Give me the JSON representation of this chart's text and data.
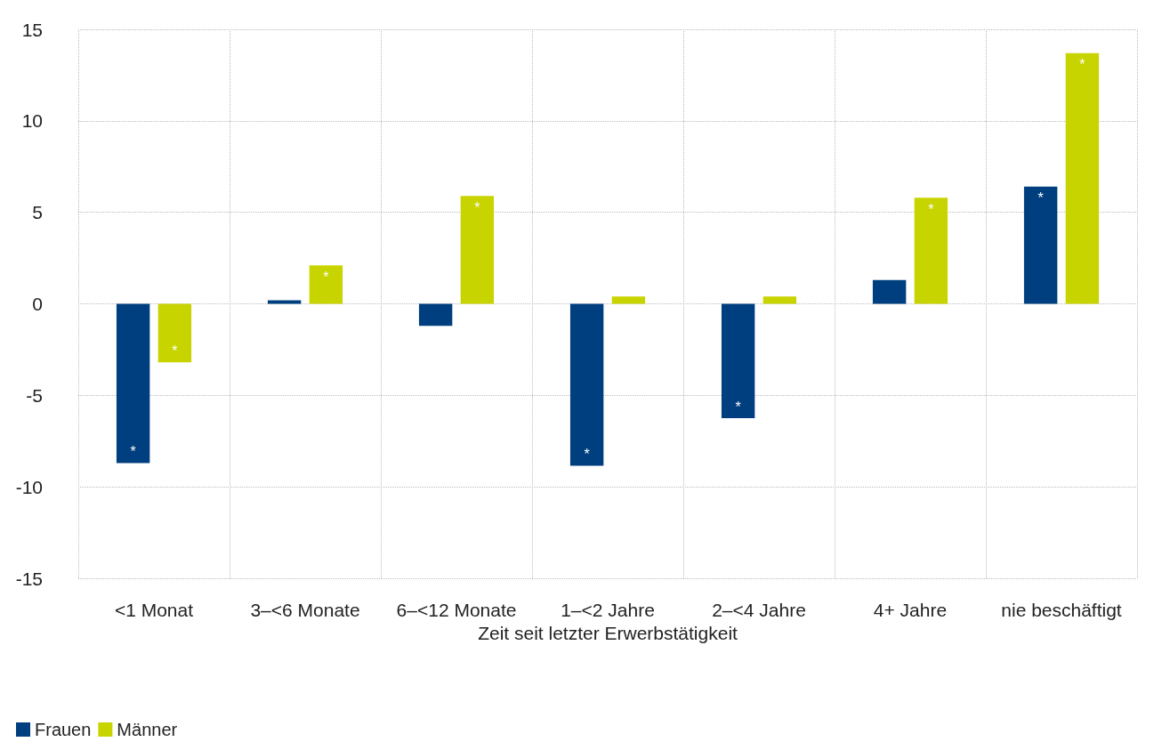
{
  "chart_data": {
    "type": "bar",
    "xlabel": "Zeit seit letzter Erwerbstätigkeit",
    "categories": [
      "<1 Monat",
      "3–<6 Monate",
      "6–<12 Monate",
      "1–<2 Jahre",
      "2–<4 Jahre",
      "4+ Jahre",
      "nie beschäftigt"
    ],
    "series": [
      {
        "name": "Frauen",
        "color": "#003f7f",
        "values": [
          -8.7,
          0.2,
          -1.2,
          -8.85,
          -6.25,
          1.3,
          6.4
        ],
        "value_labels": [
          "*",
          null,
          null,
          "*",
          "*",
          null,
          "*"
        ]
      },
      {
        "name": "Männer",
        "color": "#c8d400",
        "values": [
          -3.2,
          2.1,
          5.9,
          0.4,
          0.4,
          5.8,
          13.7
        ],
        "value_labels": [
          "*",
          "*",
          "*",
          null,
          null,
          "*",
          "*"
        ]
      }
    ],
    "ylim": [
      -15,
      15
    ],
    "yticks": [
      -15,
      -10,
      -5,
      0,
      5,
      10,
      15
    ],
    "grid": true,
    "legend": "bottom left"
  }
}
